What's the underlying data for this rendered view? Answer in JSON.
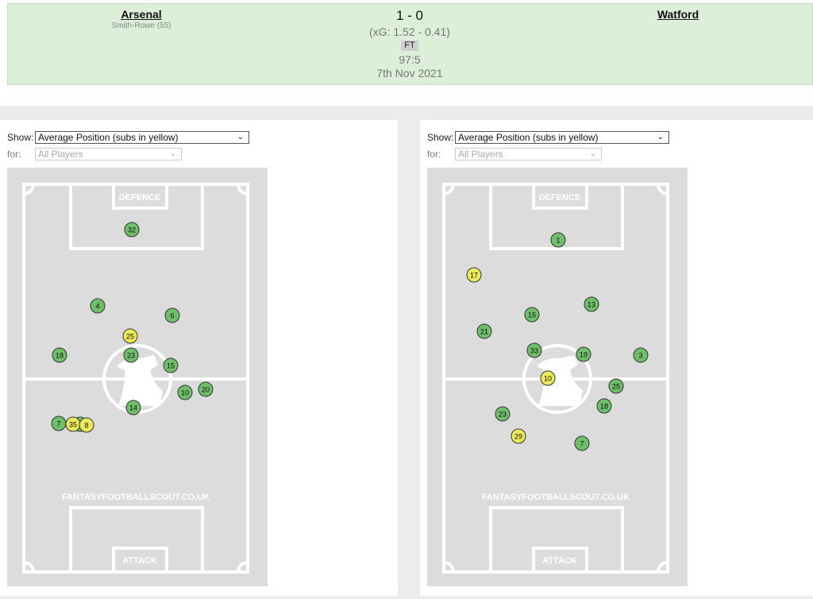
{
  "header": {
    "home": "Arsenal",
    "home_scorers": "Smith-Rowe (55)",
    "score": "1 - 0",
    "xg": "(xG:  1.52 - 0.41)",
    "status": "FT",
    "time": "97:5",
    "date": "7th Nov 2021",
    "away": "Watford"
  },
  "panels": [
    {
      "show_label": "Show:",
      "show_value": "Average Position (subs in yellow)",
      "for_label": "for:",
      "for_value": "All Players",
      "pitch": {
        "top_label": "DEFENCE",
        "bottom_label": "ATTACK",
        "watermark": "FANTASYFOOTBALLSCOUT.CO.UK"
      },
      "players": [
        "32",
        "4",
        "6",
        "25",
        "18",
        "23",
        "15",
        "20",
        "10",
        "14",
        "7",
        "35",
        "8"
      ]
    },
    {
      "show_label": "Show:",
      "show_value": "Average Position (subs in yellow)",
      "for_label": "for:",
      "for_value": "All Players",
      "pitch": {
        "top_label": "DEFENCE",
        "bottom_label": "ATTACK",
        "watermark": "FANTASYFOOTBALLSCOUT.CO.UK"
      },
      "players": [
        "1",
        "17",
        "13",
        "15",
        "21",
        "33",
        "19",
        "3",
        "10",
        "25",
        "18",
        "23",
        "29",
        "7"
      ]
    }
  ]
}
